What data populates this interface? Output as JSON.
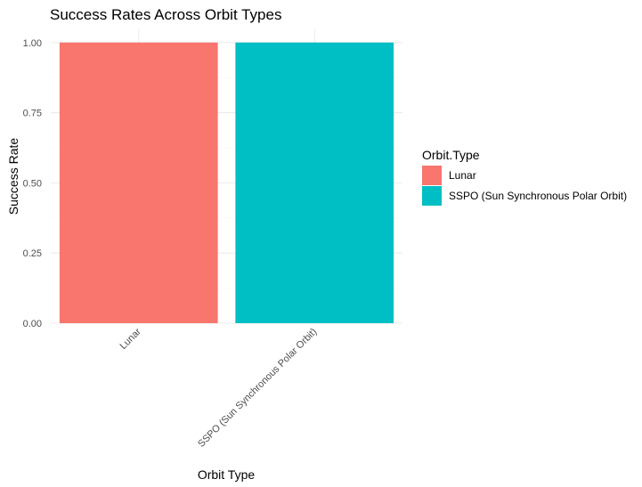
{
  "chart_data": {
    "type": "bar",
    "title": "Success Rates Across Orbit Types",
    "xlabel": "Orbit Type",
    "ylabel": "Success Rate",
    "categories": [
      "Lunar",
      "SSPO (Sun Synchronous Polar Orbit)"
    ],
    "values": [
      1.0,
      1.0
    ],
    "colors": [
      "#F8766D",
      "#00BFC4"
    ],
    "ylim": [
      0,
      1.05
    ],
    "yticks": [
      "0.00",
      "0.25",
      "0.50",
      "0.75",
      "1.00"
    ],
    "ytick_values": [
      0,
      0.25,
      0.5,
      0.75,
      1.0
    ],
    "grid": true,
    "legend": {
      "title": "Orbit.Type",
      "position": "right",
      "entries": [
        "Lunar",
        "SSPO (Sun Synchronous Polar Orbit)"
      ]
    }
  }
}
